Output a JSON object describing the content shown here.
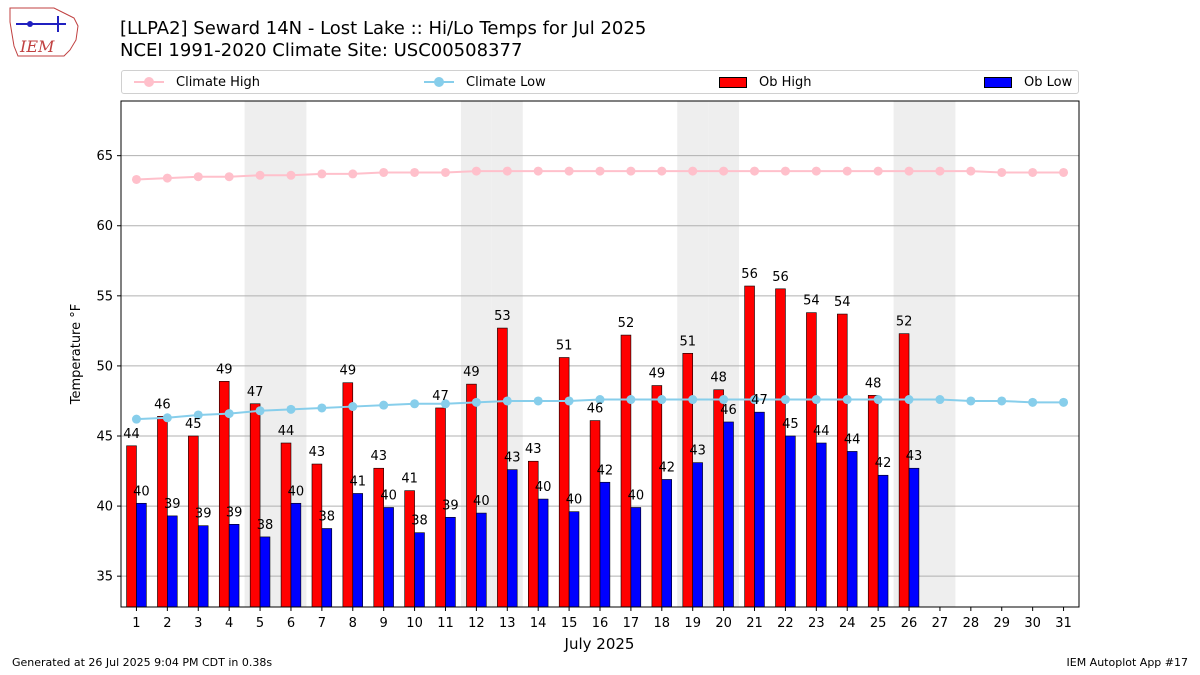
{
  "logo": {
    "text": "IEM"
  },
  "header": {
    "title_line1": "[LLPA2] Seward 14N - Lost Lake :: Hi/Lo Temps for Jul 2025",
    "title_line2": "NCEI 1991-2020 Climate Site: USC00508377"
  },
  "legend": {
    "climate_high": "Climate High",
    "climate_low": "Climate Low",
    "ob_high": "Ob High",
    "ob_low": "Ob Low"
  },
  "footer": {
    "left": "Generated at 26 Jul 2025 9:04 PM CDT in 0.38s",
    "right": "IEM Autoplot App #17"
  },
  "colors": {
    "climate_high": "#ffc0cb",
    "climate_low": "#87ceeb",
    "ob_high": "#ff0000",
    "ob_low": "#0000ff",
    "weekend_shade": "#eeeeee"
  },
  "chart_data": {
    "type": "bar",
    "xlabel": "July 2025",
    "ylabel": "Temperature °F",
    "ylim": [
      32.8,
      68.9
    ],
    "yticks": [
      35,
      40,
      45,
      50,
      55,
      60,
      65
    ],
    "grid": "horizontal",
    "legend_position": "top",
    "days": [
      1,
      2,
      3,
      4,
      5,
      6,
      7,
      8,
      9,
      10,
      11,
      12,
      13,
      14,
      15,
      16,
      17,
      18,
      19,
      20,
      21,
      22,
      23,
      24,
      25,
      26,
      27,
      28,
      29,
      30,
      31
    ],
    "shaded_days": [
      5,
      6,
      12,
      13,
      19,
      20,
      26,
      27
    ],
    "series": [
      {
        "name": "Ob High",
        "values": [
          44.3,
          46.4,
          45.0,
          48.9,
          47.3,
          44.5,
          43.0,
          48.8,
          42.7,
          41.1,
          47.0,
          48.7,
          52.7,
          43.2,
          50.6,
          46.1,
          52.2,
          48.6,
          50.9,
          48.3,
          55.7,
          55.5,
          53.8,
          53.7,
          47.9,
          52.3
        ],
        "labels": [
          "44",
          "46",
          "45",
          "49",
          "47",
          "44",
          "43",
          "49",
          "43",
          "41",
          "47",
          "49",
          "53",
          "43",
          "51",
          "46",
          "52",
          "49",
          "51",
          "48",
          "56",
          "56",
          "54",
          "54",
          "48",
          "52"
        ]
      },
      {
        "name": "Ob Low",
        "values": [
          40.2,
          39.3,
          38.6,
          38.7,
          37.8,
          40.2,
          38.4,
          40.9,
          39.9,
          38.1,
          39.2,
          39.5,
          42.6,
          40.5,
          39.6,
          41.7,
          39.9,
          41.9,
          43.1,
          46.0,
          46.7,
          45.0,
          44.5,
          43.9,
          42.2,
          42.7
        ],
        "labels": [
          "40",
          "39",
          "39",
          "39",
          "38",
          "40",
          "38",
          "41",
          "40",
          "38",
          "39",
          "40",
          "43",
          "40",
          "40",
          "42",
          "40",
          "42",
          "43",
          "46",
          "47",
          "45",
          "44",
          "44",
          "42",
          "43"
        ]
      },
      {
        "name": "Climate High",
        "values": [
          63.3,
          63.4,
          63.5,
          63.5,
          63.6,
          63.6,
          63.7,
          63.7,
          63.8,
          63.8,
          63.8,
          63.9,
          63.9,
          63.9,
          63.9,
          63.9,
          63.9,
          63.9,
          63.9,
          63.9,
          63.9,
          63.9,
          63.9,
          63.9,
          63.9,
          63.9,
          63.9,
          63.9,
          63.8,
          63.8,
          63.8
        ]
      },
      {
        "name": "Climate Low",
        "values": [
          46.2,
          46.3,
          46.5,
          46.6,
          46.8,
          46.9,
          47.0,
          47.1,
          47.2,
          47.3,
          47.3,
          47.4,
          47.5,
          47.5,
          47.5,
          47.6,
          47.6,
          47.6,
          47.6,
          47.6,
          47.6,
          47.6,
          47.6,
          47.6,
          47.6,
          47.6,
          47.6,
          47.5,
          47.5,
          47.4,
          47.4
        ]
      }
    ]
  }
}
